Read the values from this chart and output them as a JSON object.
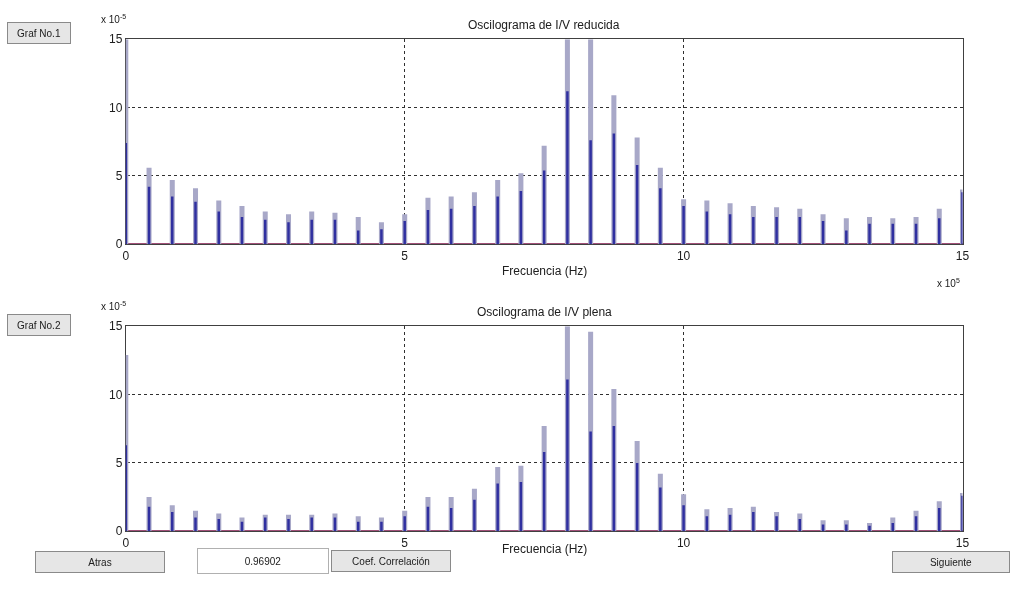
{
  "chart_data": [
    {
      "type": "bar",
      "title": "Oscilograma de I/V reducida",
      "xlabel": "Frecuencia (Hz)",
      "x": [
        0,
        0.417,
        0.833,
        1.25,
        1.667,
        2.083,
        2.5,
        2.917,
        3.333,
        3.75,
        4.167,
        4.583,
        5,
        5.417,
        5.833,
        6.25,
        6.667,
        7.083,
        7.5,
        7.917,
        8.333,
        8.75,
        9.167,
        9.583,
        10,
        10.417,
        10.833,
        11.25,
        11.667,
        12.083,
        12.5,
        12.917,
        13.333,
        13.75,
        14.167,
        14.583,
        15
      ],
      "series": [
        {
          "color": "#a8a8c8",
          "values": [
            15,
            5.6,
            4.7,
            4.1,
            3.2,
            2.8,
            2.4,
            2.2,
            2.4,
            2.3,
            2.0,
            1.6,
            2.2,
            3.4,
            3.5,
            3.8,
            4.7,
            5.2,
            7.2,
            15,
            15,
            10.9,
            7.8,
            5.6,
            3.3,
            3.2,
            3.0,
            2.8,
            2.7,
            2.6,
            2.2,
            1.9,
            2.0,
            1.9,
            2.0,
            2.6,
            4.0
          ]
        },
        {
          "color": "#3030a0",
          "values": [
            7.4,
            4.2,
            3.5,
            3.1,
            2.4,
            2.0,
            1.8,
            1.6,
            1.8,
            1.8,
            1.0,
            1.1,
            1.7,
            2.5,
            2.6,
            2.8,
            3.5,
            3.9,
            5.4,
            11.2,
            7.6,
            8.1,
            5.8,
            4.1,
            2.8,
            2.4,
            2.2,
            2.0,
            2.0,
            2.0,
            1.7,
            1.0,
            1.5,
            1.5,
            1.5,
            1.9,
            3.8
          ]
        }
      ],
      "xlim": [
        0,
        15
      ],
      "xticks": [
        0,
        5,
        10,
        15
      ],
      "ylim": [
        0,
        15
      ],
      "yticks": [
        0,
        5,
        10,
        15
      ],
      "grid": true,
      "annotations": [
        "x 10$^{-5}$",
        "x 10$^{5}$",
        "Graf No.1"
      ]
    },
    {
      "type": "bar",
      "title": "Oscilograma de I/V plena",
      "xlabel": "Frecuencia (Hz)",
      "x": [
        0,
        0.417,
        0.833,
        1.25,
        1.667,
        2.083,
        2.5,
        2.917,
        3.333,
        3.75,
        4.167,
        4.583,
        5,
        5.417,
        5.833,
        6.25,
        6.667,
        7.083,
        7.5,
        7.917,
        8.333,
        8.75,
        9.167,
        9.583,
        10,
        10.417,
        10.833,
        11.25,
        11.667,
        12.083,
        12.5,
        12.917,
        13.333,
        13.75,
        14.167,
        14.583,
        15
      ],
      "series": [
        {
          "color": "#a8a8c8",
          "values": [
            12.9,
            2.5,
            1.9,
            1.5,
            1.3,
            1.0,
            1.2,
            1.2,
            1.2,
            1.3,
            1.1,
            1.0,
            1.5,
            2.5,
            2.5,
            3.1,
            4.7,
            4.8,
            7.7,
            15,
            14.6,
            10.4,
            6.6,
            4.2,
            2.7,
            1.6,
            1.7,
            1.8,
            1.4,
            1.3,
            0.8,
            0.8,
            0.6,
            1.0,
            1.5,
            2.2,
            2.8
          ]
        },
        {
          "color": "#3030a0",
          "values": [
            6.3,
            1.8,
            1.4,
            1.0,
            0.9,
            0.7,
            1.0,
            0.9,
            1.0,
            1.0,
            0.7,
            0.7,
            1.1,
            1.8,
            1.7,
            2.3,
            3.5,
            3.6,
            5.8,
            11.1,
            7.3,
            7.7,
            5.0,
            3.2,
            1.9,
            1.1,
            1.2,
            1.4,
            1.1,
            0.9,
            0.5,
            0.5,
            0.4,
            0.6,
            1.1,
            1.7,
            2.6
          ]
        }
      ],
      "xlim": [
        0,
        15
      ],
      "xticks": [
        0,
        5,
        10,
        15
      ],
      "ylim": [
        0,
        15
      ],
      "yticks": [
        0,
        5,
        10,
        15
      ],
      "grid": true,
      "annotations": [
        "x 10$^{-5}$",
        "Graf No.2",
        "Atras",
        "0.96902",
        "Coef. Correlación",
        "Siguiente"
      ]
    }
  ]
}
